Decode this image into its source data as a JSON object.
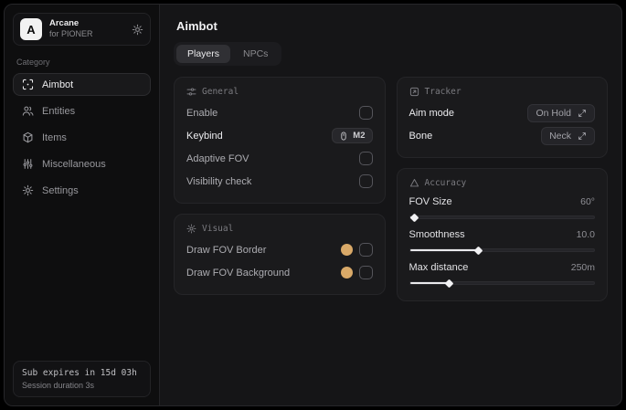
{
  "app": {
    "logo_letter": "A",
    "name": "Arcane",
    "subtitle": "for PIONER"
  },
  "sidebar": {
    "category_label": "Category",
    "items": [
      {
        "icon": "scan-icon",
        "label": "Aimbot",
        "active": true
      },
      {
        "icon": "users-icon",
        "label": "Entities",
        "active": false
      },
      {
        "icon": "package-icon",
        "label": "Items",
        "active": false
      },
      {
        "icon": "sliders-icon",
        "label": "Miscellaneous",
        "active": false
      },
      {
        "icon": "gear-icon",
        "label": "Settings",
        "active": false
      }
    ],
    "footer": {
      "line1": "Sub expires in 15d 03h",
      "line2": "Session duration 3s"
    }
  },
  "main": {
    "title": "Aimbot",
    "tabs": [
      {
        "label": "Players",
        "active": true
      },
      {
        "label": "NPCs",
        "active": false
      }
    ]
  },
  "cards": {
    "general": {
      "title": "General",
      "rows": [
        {
          "label": "Enable",
          "control": "checkbox",
          "checked": false
        },
        {
          "label": "Keybind",
          "control": "keybind",
          "value": "M2"
        },
        {
          "label": "Adaptive FOV",
          "control": "checkbox",
          "checked": false
        },
        {
          "label": "Visibility check",
          "control": "checkbox",
          "checked": false
        }
      ]
    },
    "visual": {
      "title": "Visual",
      "swatch_color": "#d9a968",
      "rows": [
        {
          "label": "Draw FOV Border",
          "checked": false
        },
        {
          "label": "Draw FOV Background",
          "checked": false
        }
      ]
    },
    "tracker": {
      "title": "Tracker",
      "rows": [
        {
          "label": "Aim mode",
          "value": "On Hold"
        },
        {
          "label": "Bone",
          "value": "Neck"
        }
      ]
    },
    "accuracy": {
      "title": "Accuracy",
      "sliders": [
        {
          "label": "FOV Size",
          "value": "60°",
          "fill_percent": 2
        },
        {
          "label": "Smoothness",
          "value": "10.0",
          "fill_percent": 37
        },
        {
          "label": "Max distance",
          "value": "250m",
          "fill_percent": 21
        }
      ]
    }
  },
  "colors": {
    "fov_swatch": "#d9a968"
  }
}
